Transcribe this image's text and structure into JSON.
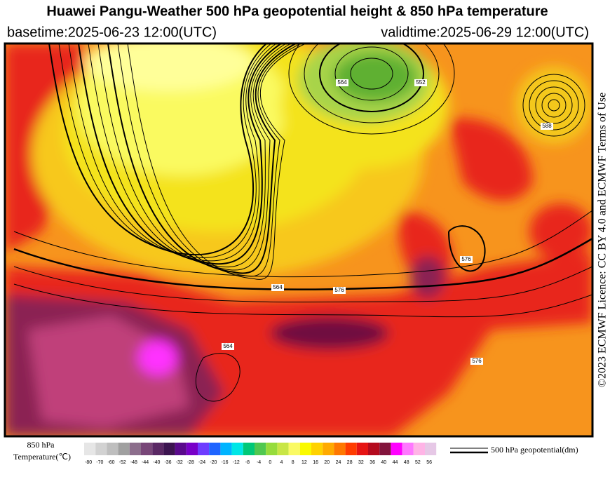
{
  "header": {
    "title": "Huawei Pangu-Weather 500 hPa geopotential height & 850 hPa temperature",
    "basetime": "basetime:2025-06-23 12:00(UTC)",
    "validtime": "validtime:2025-06-29 12:00(UTC)"
  },
  "credit": "©2023 ECMWF Licence: CC BY 4.0 and ECMWF Terms of Use",
  "legend": {
    "temperature_title": [
      "850 hPa",
      "Temperature(℃)"
    ],
    "temperature_ticks": [
      -80,
      -70,
      -60,
      -52,
      -48,
      -44,
      -40,
      -36,
      -32,
      -28,
      -24,
      -20,
      -16,
      -12,
      -8,
      -4,
      0,
      4,
      8,
      12,
      16,
      20,
      24,
      28,
      32,
      36,
      40,
      44,
      48,
      52,
      56
    ],
    "contour_title": "500 hPa geopotential(dm)"
  },
  "contour_labels": [
    564,
    576,
    576,
    588,
    552,
    564,
    576,
    564
  ]
}
